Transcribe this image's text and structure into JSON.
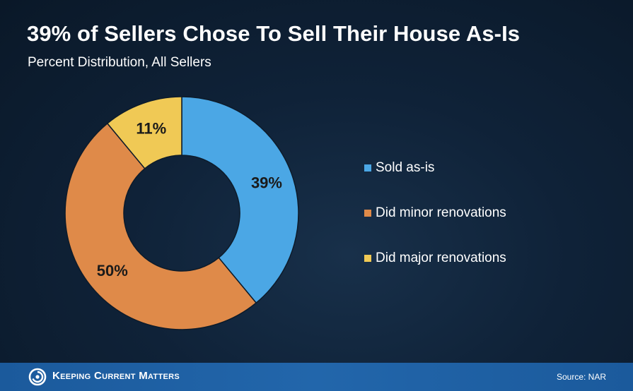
{
  "header": {
    "title": "39% of Sellers Chose To Sell Their House As-Is",
    "subtitle": "Percent Distribution, All Sellers"
  },
  "chart_data": {
    "type": "pie",
    "categories": [
      "Sold as-is",
      "Did minor renovations",
      "Did major renovations"
    ],
    "values": [
      39,
      50,
      11
    ],
    "data_labels": [
      "39%",
      "50%",
      "11%"
    ],
    "colors": [
      "#4ba7e5",
      "#df8a49",
      "#f0c955"
    ],
    "legend_position": "right",
    "donut": true
  },
  "footer": {
    "brand": "Keeping Current Matters",
    "source": "Source: NAR",
    "logo_icon": "kcm-swirl-icon"
  }
}
